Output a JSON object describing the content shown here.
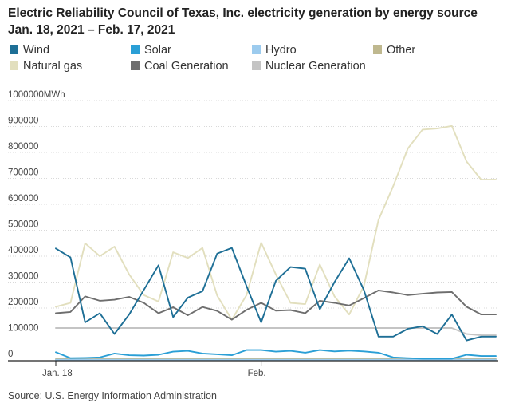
{
  "title": "Electric Reliability Council of Texas, Inc. electricity generation by energy source Jan. 18, 2021 – Feb. 17, 2021",
  "source": "Source: U.S. Energy Information Administration",
  "chart_data": {
    "type": "line",
    "title": "Electric Reliability Council of Texas, Inc. electricity generation by energy source Jan. 18, 2021 – Feb. 17, 2021",
    "xlabel": "",
    "ylabel": "MWh",
    "ylim": [
      0,
      1000000
    ],
    "yticks": [
      0,
      100000,
      200000,
      300000,
      400000,
      500000,
      600000,
      700000,
      800000,
      900000,
      1000000
    ],
    "ytick_labels": [
      "0",
      "100000",
      "200000",
      "300000",
      "400000",
      "500000",
      "600000",
      "700000",
      "800000",
      "900000",
      "1000000MWh"
    ],
    "x": [
      "2021-01-18",
      "2021-01-19",
      "2021-01-20",
      "2021-01-21",
      "2021-01-22",
      "2021-01-23",
      "2021-01-24",
      "2021-01-25",
      "2021-01-26",
      "2021-01-27",
      "2021-01-28",
      "2021-01-29",
      "2021-01-30",
      "2021-01-31",
      "2021-02-01",
      "2021-02-02",
      "2021-02-03",
      "2021-02-04",
      "2021-02-05",
      "2021-02-06",
      "2021-02-07",
      "2021-02-08",
      "2021-02-09",
      "2021-02-10",
      "2021-02-11",
      "2021-02-12",
      "2021-02-13",
      "2021-02-14",
      "2021-02-15",
      "2021-02-16",
      "2021-02-17"
    ],
    "xtick_labels": [
      {
        "x": "2021-01-18",
        "label": "Jan. 18"
      },
      {
        "x": "2021-02-01",
        "label": "Feb."
      }
    ],
    "grid": "horizontal",
    "legend_position": "top",
    "series": [
      {
        "name": "Wind",
        "color": "#1e6f96",
        "values": [
          430000,
          395000,
          145000,
          180000,
          100000,
          175000,
          270000,
          365000,
          165000,
          240000,
          265000,
          410000,
          432000,
          285000,
          145000,
          305000,
          358000,
          352000,
          195000,
          300000,
          392000,
          270000,
          90000,
          90000,
          120000,
          130000,
          100000,
          175000,
          75000,
          90000,
          90000
        ]
      },
      {
        "name": "Solar",
        "color": "#2a9fd6",
        "values": [
          30000,
          7000,
          8000,
          10000,
          25000,
          18000,
          17000,
          20000,
          32000,
          35000,
          25000,
          22000,
          18000,
          38000,
          38000,
          32000,
          35000,
          28000,
          38000,
          33000,
          36000,
          33000,
          28000,
          10000,
          7000,
          5000,
          5000,
          5000,
          20000,
          15000,
          15000
        ]
      },
      {
        "name": "Hydro",
        "color": "#9ccbee",
        "values": [
          1000,
          1000,
          1000,
          1000,
          1000,
          1000,
          1000,
          1000,
          1000,
          1000,
          1000,
          1000,
          1000,
          1000,
          1000,
          1000,
          1000,
          1000,
          1000,
          1000,
          1000,
          1000,
          1000,
          1000,
          1000,
          1000,
          1000,
          1000,
          1000,
          1000,
          1000
        ]
      },
      {
        "name": "Other",
        "color": "#bfb88f",
        "values": [
          3000,
          3000,
          3000,
          3000,
          3000,
          3000,
          3000,
          3000,
          3000,
          3000,
          3000,
          3000,
          3000,
          3000,
          3000,
          3000,
          3000,
          3000,
          3000,
          3000,
          3000,
          3000,
          3000,
          3000,
          3000,
          3000,
          3000,
          3000,
          3000,
          3000,
          3000
        ]
      },
      {
        "name": "Natural gas",
        "color": "#e2dfbe",
        "values": [
          205000,
          220000,
          450000,
          400000,
          437000,
          330000,
          250000,
          225000,
          415000,
          393000,
          432000,
          248000,
          155000,
          250000,
          452000,
          330000,
          220000,
          215000,
          368000,
          245000,
          175000,
          285000,
          540000,
          670000,
          815000,
          888000,
          892000,
          902000,
          765000,
          695000,
          695000
        ]
      },
      {
        "name": "Coal Generation",
        "color": "#6e6e6e",
        "values": [
          180000,
          185000,
          245000,
          228000,
          232000,
          243000,
          220000,
          180000,
          203000,
          172000,
          204000,
          189000,
          155000,
          193000,
          220000,
          190000,
          192000,
          180000,
          228000,
          220000,
          210000,
          238000,
          268000,
          260000,
          250000,
          255000,
          260000,
          262000,
          205000,
          175000,
          175000
        ]
      },
      {
        "name": "Nuclear Generation",
        "color": "#c4c4c4",
        "values": [
          123000,
          123000,
          123000,
          123000,
          123000,
          123000,
          123000,
          123000,
          123000,
          123000,
          123000,
          123000,
          123000,
          123000,
          123000,
          123000,
          123000,
          123000,
          123000,
          123000,
          123000,
          123000,
          123000,
          123000,
          123000,
          123000,
          123000,
          123000,
          100000,
          95000,
          95000
        ]
      }
    ]
  }
}
